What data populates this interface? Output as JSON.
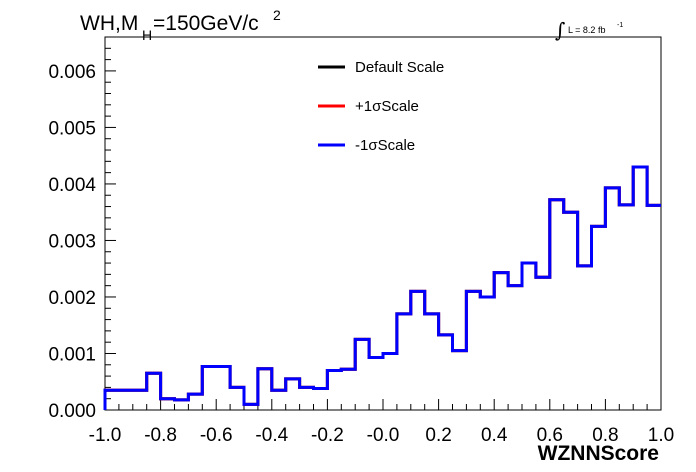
{
  "chart_data": {
    "type": "histogram",
    "title": {
      "prefix": "WH,M",
      "subscript": "H",
      "suffix": "=150GeV/c",
      "superscript": "2"
    },
    "luminosity": {
      "integral": "∫",
      "text": "L = 8.2 fb",
      "superscript": "-1"
    },
    "xlabel": "WZNNScore",
    "ylabel": "",
    "xlim": [
      -1.0,
      1.0
    ],
    "ylim": [
      0.0,
      0.0066
    ],
    "x_ticks": [
      "-1.0",
      "-0.8",
      "-0.6",
      "-0.4",
      "-0.2",
      "-0.0",
      "0.2",
      "0.4",
      "0.6",
      "0.8",
      "1.0"
    ],
    "y_ticks": [
      "0.000",
      "0.001",
      "0.002",
      "0.003",
      "0.004",
      "0.005",
      "0.006"
    ],
    "bin_edges": [
      -1.0,
      -0.95,
      -0.85,
      -0.8,
      -0.75,
      -0.7,
      -0.65,
      -0.55,
      -0.5,
      -0.45,
      -0.4,
      -0.35,
      -0.3,
      -0.25,
      -0.2,
      -0.15,
      -0.1,
      -0.05,
      0.0,
      0.05,
      0.1,
      0.15,
      0.2,
      0.25,
      0.3,
      0.35,
      0.4,
      0.45,
      0.5,
      0.55,
      0.6,
      0.65,
      0.7,
      0.75,
      0.8,
      0.85,
      0.9,
      0.95,
      1.0
    ],
    "series": [
      {
        "name": "Default Scale",
        "color": "#000000",
        "values": [
          0.00035,
          0.00035,
          0.00065,
          0.0002,
          0.00018,
          0.00028,
          0.00077,
          0.0004,
          0.0001,
          0.00073,
          0.00035,
          0.00055,
          0.0004,
          0.00038,
          0.0007,
          0.00072,
          0.00125,
          0.00093,
          0.001,
          0.0017,
          0.0021,
          0.0017,
          0.00133,
          0.00105,
          0.0021,
          0.002,
          0.00243,
          0.0022,
          0.0026,
          0.00235,
          0.00372,
          0.0035,
          0.00255,
          0.00325,
          0.00393,
          0.00363,
          0.0043,
          0.00362
        ]
      },
      {
        "name": "+1σScale",
        "color": "#ff0000",
        "values": [
          0.00035,
          0.00035,
          0.00065,
          0.0002,
          0.00018,
          0.00028,
          0.00077,
          0.0004,
          0.0001,
          0.00073,
          0.00035,
          0.00055,
          0.0004,
          0.00038,
          0.0007,
          0.00072,
          0.00125,
          0.00093,
          0.001,
          0.0017,
          0.0021,
          0.0017,
          0.00133,
          0.00105,
          0.0021,
          0.002,
          0.00243,
          0.0022,
          0.0026,
          0.00235,
          0.00372,
          0.0035,
          0.00255,
          0.00325,
          0.00393,
          0.00363,
          0.0043,
          0.00362
        ]
      },
      {
        "name": "-1σScale",
        "color": "#0000ff",
        "values": [
          0.00035,
          0.00035,
          0.00065,
          0.0002,
          0.00018,
          0.00028,
          0.00077,
          0.0004,
          0.0001,
          0.00073,
          0.00035,
          0.00055,
          0.0004,
          0.00038,
          0.0007,
          0.00072,
          0.00125,
          0.00093,
          0.001,
          0.0017,
          0.0021,
          0.0017,
          0.00133,
          0.00105,
          0.0021,
          0.002,
          0.00243,
          0.0022,
          0.0026,
          0.00235,
          0.00372,
          0.0035,
          0.00255,
          0.00325,
          0.00393,
          0.00363,
          0.0043,
          0.00362
        ]
      }
    ],
    "legend_position": "top-center",
    "grid": false
  }
}
